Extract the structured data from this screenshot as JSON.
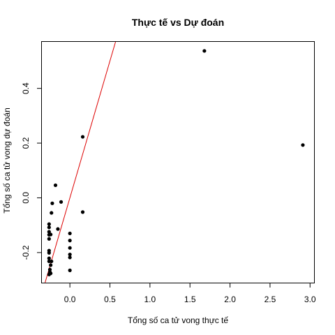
{
  "chart_data": {
    "type": "scatter",
    "title": "Thực tế vs Dự đoán",
    "xlabel": "Tổng số ca tử vong thực tế",
    "ylabel": "Tổng số ca tử vong dự đoán",
    "xlim": [
      -0.35,
      3.05
    ],
    "ylim": [
      -0.31,
      0.57
    ],
    "xticks": [
      {
        "value": 0.0,
        "label": "0.0"
      },
      {
        "value": 0.5,
        "label": "0.5"
      },
      {
        "value": 1.0,
        "label": "1.0"
      },
      {
        "value": 1.5,
        "label": "1.5"
      },
      {
        "value": 2.0,
        "label": "2.0"
      },
      {
        "value": 2.5,
        "label": "2.5"
      },
      {
        "value": 3.0,
        "label": "3.0"
      }
    ],
    "yticks": [
      {
        "value": -0.2,
        "label": "-0.2"
      },
      {
        "value": 0.0,
        "label": "0.0"
      },
      {
        "value": 0.2,
        "label": "0.2"
      },
      {
        "value": 0.4,
        "label": "0.4"
      }
    ],
    "grid": false,
    "legend": "none",
    "points": [
      {
        "x": 1.68,
        "y": 0.537
      },
      {
        "x": 2.91,
        "y": 0.193
      },
      {
        "x": 0.16,
        "y": 0.223
      },
      {
        "x": 0.16,
        "y": -0.052
      },
      {
        "x": -0.18,
        "y": 0.046
      },
      {
        "x": -0.11,
        "y": -0.015
      },
      {
        "x": -0.22,
        "y": -0.02
      },
      {
        "x": -0.23,
        "y": -0.055
      },
      {
        "x": -0.15,
        "y": -0.114
      },
      {
        "x": -0.26,
        "y": -0.096
      },
      {
        "x": -0.26,
        "y": -0.108
      },
      {
        "x": -0.26,
        "y": -0.124
      },
      {
        "x": -0.26,
        "y": -0.135
      },
      {
        "x": -0.26,
        "y": -0.15
      },
      {
        "x": -0.24,
        "y": -0.134
      },
      {
        "x": -0.26,
        "y": -0.193
      },
      {
        "x": -0.26,
        "y": -0.201
      },
      {
        "x": -0.26,
        "y": -0.221
      },
      {
        "x": -0.26,
        "y": -0.232
      },
      {
        "x": -0.23,
        "y": -0.232
      },
      {
        "x": -0.24,
        "y": -0.246
      },
      {
        "x": -0.25,
        "y": -0.262
      },
      {
        "x": -0.25,
        "y": -0.271
      },
      {
        "x": -0.26,
        "y": -0.28
      },
      {
        "x": -0.24,
        "y": -0.276
      },
      {
        "x": 0.0,
        "y": -0.13
      },
      {
        "x": 0.0,
        "y": -0.156
      },
      {
        "x": 0.0,
        "y": -0.183
      },
      {
        "x": 0.0,
        "y": -0.207
      },
      {
        "x": 0.0,
        "y": -0.218
      },
      {
        "x": 0.0,
        "y": -0.265
      }
    ],
    "reference_line": {
      "color": "#dd0000",
      "points": [
        {
          "x": -0.31,
          "y": -0.31
        },
        {
          "x": 0.57,
          "y": 0.57
        }
      ]
    },
    "point_color": "#000000"
  }
}
